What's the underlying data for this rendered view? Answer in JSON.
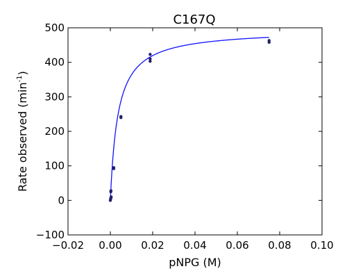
{
  "chart_data": {
    "type": "scatter",
    "title": "C167Q",
    "xlabel": "pNPG (M)",
    "ylabel_main": "Rate observed (min",
    "ylabel_sup": "-1",
    "ylabel_end": ")",
    "xlim": [
      -0.02,
      0.1
    ],
    "ylim": [
      -100,
      500
    ],
    "xticks": [
      -0.02,
      0.0,
      0.02,
      0.04,
      0.06,
      0.08,
      0.1
    ],
    "xtick_labels": [
      "−0.02",
      "0.00",
      "0.02",
      "0.04",
      "0.06",
      "0.08",
      "0.10"
    ],
    "yticks": [
      -100,
      0,
      100,
      200,
      300,
      400,
      500
    ],
    "ytick_labels": [
      "−100",
      "0",
      "100",
      "200",
      "300",
      "400",
      "500"
    ],
    "grid": false,
    "series": [
      {
        "kind": "points",
        "color": "#22226a",
        "x": [
          0.0,
          0.0001,
          0.0002,
          0.0003,
          0.0004,
          0.0002,
          0.0003,
          0.0016,
          0.0016,
          0.005,
          0.005,
          0.0188,
          0.0188,
          0.0188,
          0.075,
          0.075
        ],
        "y": [
          0,
          3,
          6,
          8,
          10,
          25,
          28,
          92,
          95,
          240,
          243,
          403,
          410,
          423,
          458,
          463
        ]
      },
      {
        "kind": "fit",
        "color": "#1010ff",
        "model": "michaelis-menten",
        "vmax": 495,
        "km": 0.0036,
        "x_range": [
          0.0,
          0.075
        ]
      }
    ]
  }
}
